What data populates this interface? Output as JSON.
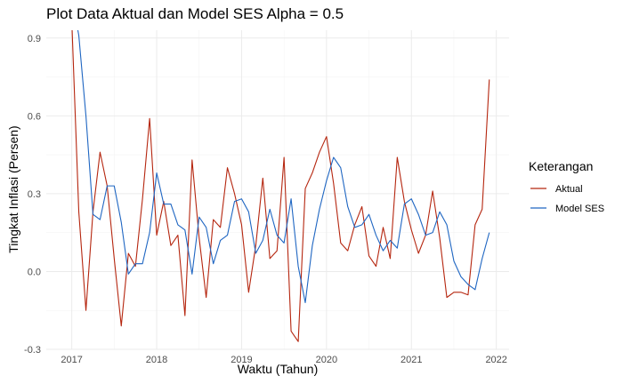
{
  "chart_data": {
    "type": "line",
    "title": "Plot Data Aktual dan Model SES Alpha = 0.5",
    "xlabel": "Waktu (Tahun)",
    "ylabel": "Tingkat Inflasi (Persen)",
    "xlim": [
      2016.7,
      2022.15
    ],
    "ylim": [
      -0.3,
      0.93
    ],
    "x_ticks": [
      2017,
      2018,
      2019,
      2020,
      2021,
      2022
    ],
    "y_ticks": [
      -0.3,
      0.0,
      0.3,
      0.6,
      0.9
    ],
    "y_tick_labels": [
      "-0.3",
      "0.0",
      "0.3",
      "0.6",
      "0.9"
    ],
    "x": [
      2017.0,
      2017.083,
      2017.167,
      2017.25,
      2017.333,
      2017.417,
      2017.5,
      2017.583,
      2017.667,
      2017.75,
      2017.833,
      2017.917,
      2018.0,
      2018.083,
      2018.167,
      2018.25,
      2018.333,
      2018.417,
      2018.5,
      2018.583,
      2018.667,
      2018.75,
      2018.833,
      2018.917,
      2019.0,
      2019.083,
      2019.167,
      2019.25,
      2019.333,
      2019.417,
      2019.5,
      2019.583,
      2019.667,
      2019.75,
      2019.833,
      2019.917,
      2020.0,
      2020.083,
      2020.167,
      2020.25,
      2020.333,
      2020.417,
      2020.5,
      2020.583,
      2020.667,
      2020.75,
      2020.833,
      2020.917,
      2021.0,
      2021.083,
      2021.167,
      2021.25,
      2021.333,
      2021.417,
      2021.5,
      2021.583,
      2021.667,
      2021.75,
      2021.833,
      2021.917
    ],
    "series": [
      {
        "name": "Aktual",
        "color": "#b5260f",
        "values": [
          0.97,
          0.23,
          -0.15,
          0.23,
          0.46,
          0.33,
          0.05,
          -0.21,
          0.07,
          0.02,
          0.28,
          0.59,
          0.14,
          0.27,
          0.1,
          0.14,
          -0.17,
          0.43,
          0.13,
          -0.1,
          0.2,
          0.17,
          0.4,
          0.3,
          0.18,
          -0.08,
          0.1,
          0.36,
          0.05,
          0.08,
          0.44,
          -0.23,
          -0.27,
          0.32,
          0.38,
          0.46,
          0.52,
          0.34,
          0.11,
          0.08,
          0.18,
          0.25,
          0.06,
          0.02,
          0.17,
          0.05,
          0.44,
          0.27,
          0.16,
          0.07,
          0.14,
          0.31,
          0.13,
          -0.1,
          -0.08,
          -0.08,
          -0.09,
          0.18,
          0.24,
          0.74
        ]
      },
      {
        "name": "Model SES",
        "color": "#1f66c2",
        "values": [
          1.06,
          0.91,
          0.6,
          0.22,
          0.2,
          0.33,
          0.33,
          0.19,
          -0.01,
          0.03,
          0.03,
          0.15,
          0.38,
          0.26,
          0.26,
          0.18,
          0.16,
          -0.01,
          0.21,
          0.17,
          0.03,
          0.12,
          0.14,
          0.27,
          0.28,
          0.23,
          0.07,
          0.12,
          0.24,
          0.14,
          0.11,
          0.28,
          0.02,
          -0.12,
          0.1,
          0.24,
          0.35,
          0.44,
          0.4,
          0.25,
          0.17,
          0.18,
          0.22,
          0.14,
          0.08,
          0.12,
          0.09,
          0.26,
          0.28,
          0.22,
          0.14,
          0.15,
          0.23,
          0.18,
          0.04,
          -0.02,
          -0.05,
          -0.07,
          0.05,
          0.15
        ]
      }
    ],
    "legend": {
      "title": "Keterangan",
      "placement": "right"
    },
    "grid": true
  }
}
